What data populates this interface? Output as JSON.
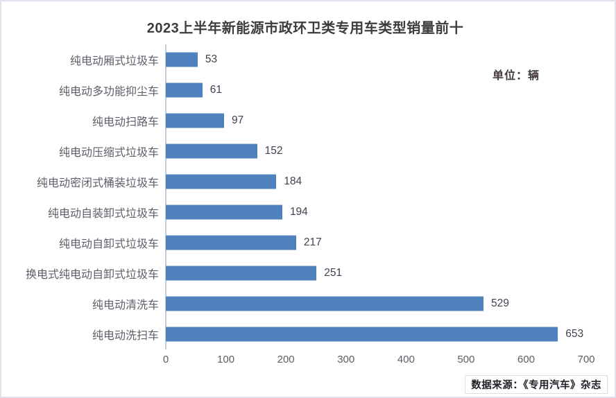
{
  "title": "2023上半年新能源市政环卫类专用车类型销量前十",
  "unit_label": "单位：辆",
  "source_label": "数据来源：《专用汽车》杂志",
  "colors": {
    "bar": "#4e81bd",
    "axis": "#c6cbd8",
    "title_text": "#3d3d3d",
    "category_text": "#625c68",
    "value_text": "#3f4150"
  },
  "chart_data": {
    "type": "bar",
    "orientation": "horizontal",
    "title": "2023上半年新能源市政环卫类专用车类型销量前十",
    "unit": "辆",
    "categories": [
      "纯电动厢式垃圾车",
      "纯电动多功能抑尘车",
      "纯电动扫路车",
      "纯电动压缩式垃圾车",
      "纯电动密闭式桶装垃圾车",
      "纯电动自装卸式垃圾车",
      "纯电动自卸式垃圾车",
      "换电式纯电动自卸式垃圾车",
      "纯电动清洗车",
      "纯电动洗扫车"
    ],
    "values": [
      53,
      61,
      97,
      152,
      184,
      194,
      217,
      251,
      529,
      653
    ],
    "xlim": [
      0,
      700
    ],
    "x_ticks": [
      0,
      100,
      200,
      300,
      400,
      500,
      600,
      700
    ],
    "grid": false,
    "legend": false
  }
}
